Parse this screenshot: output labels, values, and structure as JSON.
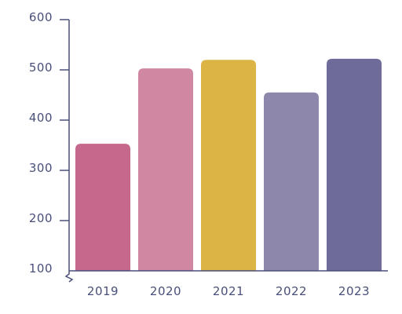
{
  "chart_data": {
    "type": "bar",
    "title": "",
    "xlabel": "",
    "ylabel": "",
    "categories": [
      "2019",
      "2020",
      "2021",
      "2022",
      "2023"
    ],
    "values": [
      353,
      503,
      520,
      455,
      522
    ],
    "ylim": [
      100,
      600
    ],
    "yticks": [
      100,
      200,
      300,
      400,
      500,
      600
    ],
    "ytick_labels": [
      "100",
      "200",
      "300",
      "400",
      "500",
      "600"
    ],
    "y_axis_break": true,
    "grid": false,
    "legend": "none",
    "bar_colors": [
      "#c5688c",
      "#d088a2",
      "#dcb345",
      "#8d88ab",
      "#6f6b98"
    ],
    "axis_color": "#4a4f7a"
  }
}
